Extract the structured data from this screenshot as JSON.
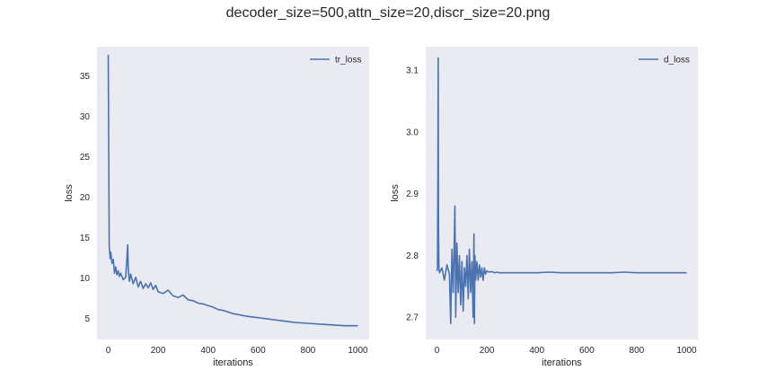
{
  "figure": {
    "title": "decoder_size=500,attn_size=20,discr_size=20.png"
  },
  "colors": {
    "background": "#eaeaf2",
    "line": "#4c72b0"
  },
  "chart_data": [
    {
      "type": "line",
      "xlabel": "iterations",
      "ylabel": "loss",
      "xlim": [
        -45,
        1045
      ],
      "ylim": [
        2.4,
        38.6
      ],
      "xticks": [
        0,
        200,
        400,
        600,
        800,
        1000
      ],
      "yticks": [
        5,
        10,
        15,
        20,
        25,
        30,
        35
      ],
      "legend_position": "top-right",
      "grid": false,
      "series": [
        {
          "name": "tr_loss",
          "x": [
            0,
            2,
            4,
            6,
            8,
            10,
            15,
            20,
            25,
            30,
            35,
            40,
            45,
            50,
            60,
            70,
            75,
            78,
            80,
            82,
            85,
            90,
            100,
            110,
            120,
            130,
            140,
            150,
            160,
            170,
            180,
            190,
            200,
            220,
            240,
            260,
            280,
            300,
            320,
            340,
            360,
            380,
            400,
            420,
            440,
            460,
            480,
            500,
            550,
            600,
            650,
            700,
            750,
            800,
            850,
            900,
            950,
            1000
          ],
          "y": [
            37.6,
            25.0,
            14.0,
            13.0,
            12.4,
            13.2,
            11.8,
            12.3,
            10.6,
            11.4,
            10.4,
            10.9,
            10.2,
            10.6,
            9.8,
            10.1,
            12.6,
            14.1,
            11.6,
            10.4,
            9.6,
            10.5,
            9.3,
            10.1,
            8.9,
            9.6,
            8.7,
            9.3,
            8.8,
            9.4,
            8.6,
            9.1,
            8.3,
            8.1,
            8.5,
            7.8,
            7.6,
            7.9,
            7.3,
            7.2,
            6.9,
            6.8,
            6.6,
            6.4,
            6.1,
            6.0,
            5.8,
            5.6,
            5.3,
            5.1,
            4.9,
            4.7,
            4.5,
            4.4,
            4.3,
            4.2,
            4.1,
            4.1
          ]
        }
      ]
    },
    {
      "type": "line",
      "xlabel": "iterations",
      "ylabel": "loss",
      "xlim": [
        -45,
        1045
      ],
      "ylim": [
        2.664,
        3.138
      ],
      "xticks": [
        0,
        200,
        400,
        600,
        800,
        1000
      ],
      "yticks": [
        2.7,
        2.8,
        2.9,
        3.0,
        3.1
      ],
      "legend_position": "top-right",
      "grid": false,
      "series": [
        {
          "name": "d_loss",
          "x": [
            0,
            2,
            4,
            5,
            6,
            8,
            10,
            20,
            30,
            40,
            50,
            55,
            60,
            65,
            70,
            72,
            75,
            80,
            85,
            90,
            95,
            100,
            105,
            110,
            115,
            120,
            125,
            130,
            135,
            140,
            145,
            148,
            150,
            152,
            155,
            160,
            165,
            170,
            175,
            180,
            185,
            190,
            195,
            200,
            210,
            220,
            230,
            240,
            250,
            300,
            350,
            400,
            450,
            500,
            550,
            600,
            650,
            700,
            750,
            800,
            850,
            900,
            950,
            1000
          ],
          "y": [
            2.775,
            2.78,
            2.95,
            3.12,
            2.85,
            2.78,
            2.772,
            2.78,
            2.76,
            2.785,
            2.77,
            2.69,
            2.81,
            2.74,
            2.84,
            2.88,
            2.7,
            2.82,
            2.74,
            2.8,
            2.72,
            2.79,
            2.71,
            2.78,
            2.75,
            2.8,
            2.73,
            2.81,
            2.74,
            2.79,
            2.7,
            2.835,
            2.69,
            2.8,
            2.76,
            2.79,
            2.76,
            2.785,
            2.765,
            2.78,
            2.76,
            2.78,
            2.77,
            2.775,
            2.773,
            2.774,
            2.772,
            2.773,
            2.772,
            2.772,
            2.772,
            2.772,
            2.773,
            2.772,
            2.772,
            2.772,
            2.772,
            2.772,
            2.773,
            2.772,
            2.772,
            2.772,
            2.772,
            2.772
          ]
        }
      ]
    }
  ]
}
